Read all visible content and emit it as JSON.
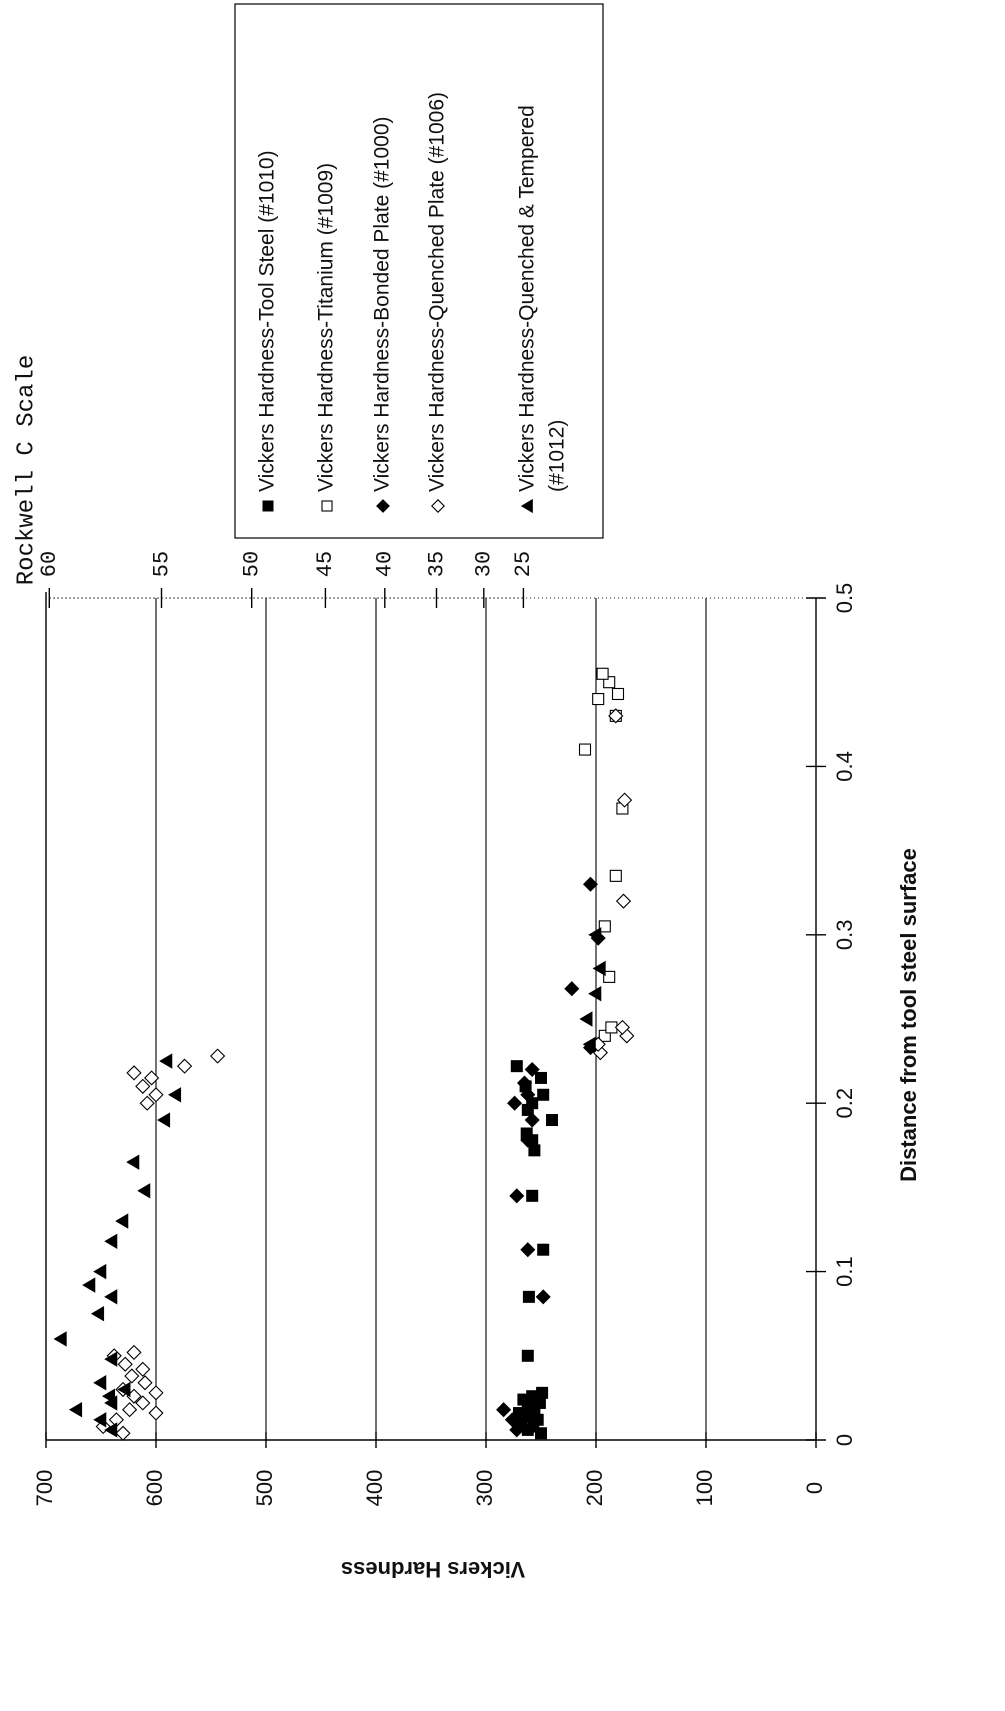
{
  "chart_data": {
    "type": "scatter",
    "title": "",
    "xlabel": "Distance from tool steel surface",
    "ylabel": "Vickers Hardness",
    "xlim": [
      0,
      0.5
    ],
    "ylim": [
      0,
      700
    ],
    "x_ticks": [
      "0",
      "0.1",
      "0.2",
      "0.3",
      "0.4",
      "0.5"
    ],
    "y_ticks": [
      "0",
      "100",
      "200",
      "300",
      "400",
      "500",
      "600",
      "700"
    ],
    "grid": "horizontal",
    "rotation": "rotated 90 degrees clockwise",
    "secondary_axis": {
      "label": "Rockwell C Scale",
      "ticks": [
        {
          "label": "60",
          "hv": 697
        },
        {
          "label": "55",
          "hv": 595
        },
        {
          "label": "50",
          "hv": 513
        },
        {
          "label": "45",
          "hv": 446
        },
        {
          "label": "40",
          "hv": 392
        },
        {
          "label": "35",
          "hv": 345
        },
        {
          "label": "30",
          "hv": 302
        },
        {
          "label": "25",
          "hv": 266
        }
      ]
    },
    "legend_position": "top-right",
    "series": [
      {
        "name": "Vickers Hardness-Tool Steel (#1010)",
        "marker": "square-filled",
        "points": [
          [
            0.004,
            250
          ],
          [
            0.006,
            262
          ],
          [
            0.008,
            257
          ],
          [
            0.01,
            268
          ],
          [
            0.012,
            253
          ],
          [
            0.014,
            263
          ],
          [
            0.016,
            270
          ],
          [
            0.018,
            256
          ],
          [
            0.02,
            262
          ],
          [
            0.022,
            251
          ],
          [
            0.024,
            266
          ],
          [
            0.026,
            258
          ],
          [
            0.028,
            249
          ],
          [
            0.05,
            262
          ],
          [
            0.085,
            261
          ],
          [
            0.113,
            248
          ],
          [
            0.145,
            258
          ],
          [
            0.172,
            256
          ],
          [
            0.178,
            258
          ],
          [
            0.182,
            263
          ],
          [
            0.19,
            240
          ],
          [
            0.196,
            262
          ],
          [
            0.2,
            258
          ],
          [
            0.205,
            248
          ],
          [
            0.21,
            264
          ],
          [
            0.215,
            250
          ],
          [
            0.222,
            272
          ]
        ]
      },
      {
        "name": "Vickers Hardness-Titanium (#1009)",
        "marker": "square-open",
        "points": [
          [
            0.24,
            192
          ],
          [
            0.245,
            186
          ],
          [
            0.275,
            188
          ],
          [
            0.305,
            192
          ],
          [
            0.335,
            182
          ],
          [
            0.375,
            176
          ],
          [
            0.41,
            210
          ],
          [
            0.43,
            182
          ],
          [
            0.44,
            198
          ],
          [
            0.443,
            180
          ],
          [
            0.45,
            188
          ],
          [
            0.455,
            194
          ]
        ]
      },
      {
        "name": "Vickers Hardness-Bonded Plate (#1000)",
        "marker": "diamond-filled",
        "points": [
          [
            0.006,
            272
          ],
          [
            0.012,
            276
          ],
          [
            0.018,
            284
          ],
          [
            0.024,
            258
          ],
          [
            0.085,
            248
          ],
          [
            0.113,
            262
          ],
          [
            0.145,
            272
          ],
          [
            0.178,
            262
          ],
          [
            0.19,
            258
          ],
          [
            0.2,
            274
          ],
          [
            0.205,
            262
          ],
          [
            0.212,
            265
          ],
          [
            0.22,
            258
          ],
          [
            0.233,
            205
          ],
          [
            0.268,
            222
          ],
          [
            0.298,
            198
          ],
          [
            0.33,
            205
          ]
        ]
      },
      {
        "name": "Vickers Hardness-Quenched Plate (#1006)",
        "marker": "diamond-open",
        "points": [
          [
            0.004,
            630
          ],
          [
            0.008,
            648
          ],
          [
            0.012,
            636
          ],
          [
            0.016,
            600
          ],
          [
            0.018,
            624
          ],
          [
            0.022,
            612
          ],
          [
            0.026,
            620
          ],
          [
            0.028,
            600
          ],
          [
            0.03,
            630
          ],
          [
            0.034,
            610
          ],
          [
            0.038,
            622
          ],
          [
            0.042,
            612
          ],
          [
            0.045,
            628
          ],
          [
            0.05,
            638
          ],
          [
            0.052,
            620
          ],
          [
            0.2,
            608
          ],
          [
            0.205,
            600
          ],
          [
            0.21,
            612
          ],
          [
            0.215,
            604
          ],
          [
            0.218,
            620
          ],
          [
            0.222,
            574
          ],
          [
            0.228,
            544
          ],
          [
            0.23,
            196
          ],
          [
            0.235,
            198
          ],
          [
            0.24,
            172
          ],
          [
            0.245,
            176
          ],
          [
            0.32,
            175
          ],
          [
            0.38,
            174
          ],
          [
            0.43,
            182
          ]
        ]
      },
      {
        "name": "Vickers Hardness-Quenched & Tempered (#1012)",
        "marker": "triangle-filled",
        "points": [
          [
            0.006,
            640
          ],
          [
            0.012,
            650
          ],
          [
            0.018,
            672
          ],
          [
            0.022,
            640
          ],
          [
            0.026,
            642
          ],
          [
            0.03,
            628
          ],
          [
            0.034,
            650
          ],
          [
            0.048,
            640
          ],
          [
            0.06,
            686
          ],
          [
            0.075,
            652
          ],
          [
            0.085,
            640
          ],
          [
            0.092,
            660
          ],
          [
            0.1,
            650
          ],
          [
            0.118,
            640
          ],
          [
            0.13,
            630
          ],
          [
            0.148,
            610
          ],
          [
            0.165,
            620
          ],
          [
            0.19,
            592
          ],
          [
            0.205,
            582
          ],
          [
            0.225,
            590
          ],
          [
            0.235,
            205
          ],
          [
            0.25,
            208
          ],
          [
            0.265,
            200
          ],
          [
            0.28,
            196
          ],
          [
            0.3,
            200
          ]
        ]
      }
    ]
  }
}
